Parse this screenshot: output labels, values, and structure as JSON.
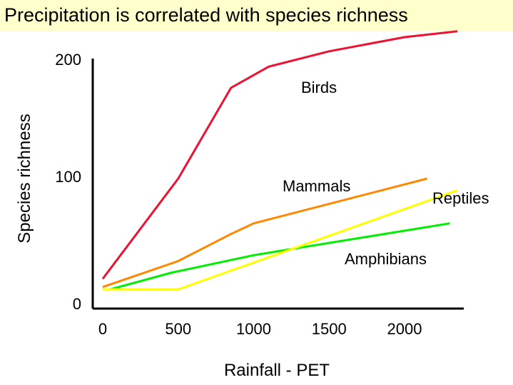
{
  "slide": {
    "title": "Precipitation is correlated with species richness",
    "band_color": "#ffffcc"
  },
  "chart_data": {
    "type": "line",
    "title": "Precipitation is correlated with species richness",
    "xlabel": "Rainfall - PET",
    "ylabel": "Species richness",
    "x_ticks": [
      "0",
      "500",
      "1000",
      "1500",
      "2000"
    ],
    "y_ticks": [
      "0",
      "100",
      "200"
    ],
    "xlim": [
      0,
      2350
    ],
    "ylim": [
      0,
      200
    ],
    "grid": false,
    "legend": "inline labels",
    "series": [
      {
        "name": "Birds",
        "color": "#ee1133",
        "points": [
          [
            0,
            15
          ],
          [
            500,
            100
          ],
          [
            850,
            177
          ],
          [
            1100,
            195
          ],
          [
            1500,
            208
          ],
          [
            2000,
            220
          ],
          [
            2350,
            225
          ]
        ]
      },
      {
        "name": "Mammals",
        "color": "#ff8800",
        "points": [
          [
            0,
            8
          ],
          [
            500,
            30
          ],
          [
            850,
            53
          ],
          [
            1000,
            62
          ],
          [
            2150,
            100
          ]
        ]
      },
      {
        "name": "Reptiles",
        "color": "#ffff00",
        "points": [
          [
            0,
            6
          ],
          [
            500,
            6
          ],
          [
            2350,
            90
          ]
        ]
      },
      {
        "name": "Amphibians",
        "color": "#00ee00",
        "points": [
          [
            50,
            6
          ],
          [
            450,
            20
          ],
          [
            1000,
            35
          ],
          [
            2300,
            62
          ]
        ]
      }
    ]
  }
}
